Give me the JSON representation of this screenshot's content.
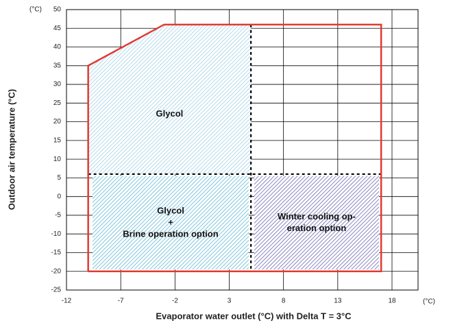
{
  "chart_data": {
    "type": "envelope",
    "x_label": "Evaporator water outlet (°C) with Delta T = 3°C",
    "y_label": "Outdoor air temperature (°C)",
    "x_unit": "(°C)",
    "y_unit": "(°C)",
    "xlim": [
      -12,
      20.4
    ],
    "ylim": [
      -25,
      50
    ],
    "xticks": [
      -12,
      -7,
      -2,
      3,
      8,
      13,
      18
    ],
    "yticks": [
      -25,
      -20,
      -15,
      -10,
      -5,
      0,
      5,
      10,
      15,
      20,
      25,
      30,
      35,
      40,
      45,
      50
    ],
    "grid": true,
    "envelope": {
      "color": "#e03a2f",
      "x": [
        -10,
        -10,
        -3,
        17,
        17,
        -10
      ],
      "y": [
        -20,
        35,
        46,
        46,
        -20,
        -20
      ]
    },
    "dividers": [
      {
        "x": [
          -10,
          17
        ],
        "y": [
          6,
          6
        ]
      },
      {
        "x": [
          5,
          5
        ],
        "y": [
          46,
          -20
        ]
      }
    ],
    "regions": [
      {
        "lines": [
          "Glycol"
        ],
        "color": "#9fd0e8",
        "x": [
          -10,
          -10,
          -3,
          5,
          5
        ],
        "y": [
          6,
          35,
          46,
          46,
          6
        ]
      },
      {
        "lines": [
          "Glycol",
          "+",
          "Brine operation option"
        ],
        "color": "#5fb8d4",
        "x": [
          -9.6,
          -9.6,
          4.8,
          4.8
        ],
        "y": [
          -19.5,
          5.5,
          5.5,
          -19.5
        ]
      },
      {
        "lines": [
          "Winter cooling op-",
          "eration option"
        ],
        "color": "#6c66b0",
        "x": [
          5.3,
          5.3,
          16.8,
          16.8
        ],
        "y": [
          -19.5,
          5.5,
          5.5,
          -19.5
        ]
      }
    ]
  }
}
